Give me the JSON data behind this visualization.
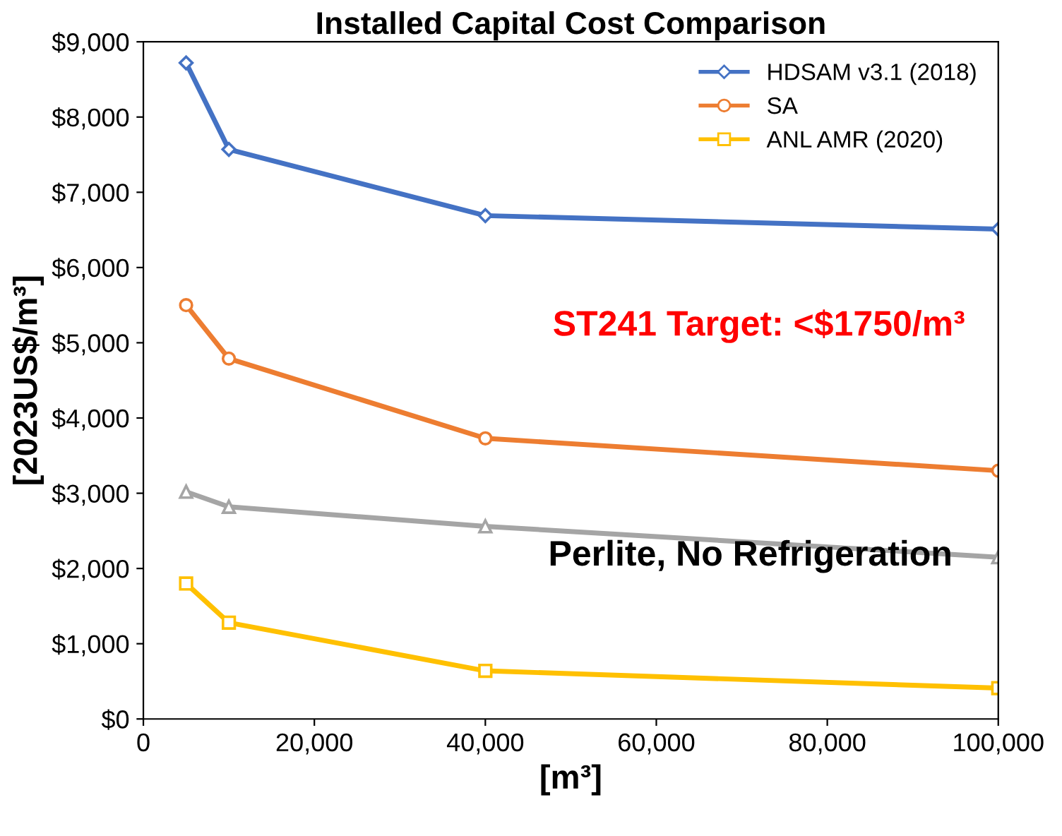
{
  "chart_data": {
    "type": "line",
    "title": "Installed Capital Cost Comparison",
    "xlabel": "[m³]",
    "ylabel": "[2023US$/m³]",
    "x": [
      5000,
      10000,
      40000,
      100000
    ],
    "series": [
      {
        "name": "HDSAM v3.1 (2018)",
        "color": "#4472c4",
        "marker": "diamond",
        "values": [
          8720,
          7570,
          6690,
          6510
        ]
      },
      {
        "name": "SA",
        "color": "#ed7d31",
        "marker": "circle",
        "values": [
          5500,
          4790,
          3730,
          3300
        ]
      },
      {
        "color": "#a5a5a5",
        "marker": "triangle",
        "values": [
          3020,
          2820,
          2560,
          2150
        ]
      },
      {
        "name": "ANL AMR (2020)",
        "color": "#ffc000",
        "marker": "square",
        "values": [
          1800,
          1280,
          640,
          410
        ]
      }
    ],
    "xlim": [
      0,
      100000
    ],
    "xticks": [
      {
        "value": 0,
        "label": "0"
      },
      {
        "value": 20000,
        "label": "20,000"
      },
      {
        "value": 40000,
        "label": "40,000"
      },
      {
        "value": 60000,
        "label": "60,000"
      },
      {
        "value": 80000,
        "label": "80,000"
      },
      {
        "value": 100000,
        "label": "100,000"
      }
    ],
    "ylim": [
      0,
      9000
    ],
    "yticks": [
      {
        "value": 0,
        "label": "$0"
      },
      {
        "value": 1000,
        "label": "$1,000"
      },
      {
        "value": 2000,
        "label": "$2,000"
      },
      {
        "value": 3000,
        "label": "$3,000"
      },
      {
        "value": 4000,
        "label": "$4,000"
      },
      {
        "value": 5000,
        "label": "$5,000"
      },
      {
        "value": 6000,
        "label": "$6,000"
      },
      {
        "value": 7000,
        "label": "$7,000"
      },
      {
        "value": 8000,
        "label": "$8,000"
      },
      {
        "value": 9000,
        "label": "$9,000"
      }
    ],
    "annotations": [
      "ST241 Target: <$1750/m³",
      "Perlite, No Refrigeration"
    ],
    "legend": "top right",
    "grid": false
  }
}
